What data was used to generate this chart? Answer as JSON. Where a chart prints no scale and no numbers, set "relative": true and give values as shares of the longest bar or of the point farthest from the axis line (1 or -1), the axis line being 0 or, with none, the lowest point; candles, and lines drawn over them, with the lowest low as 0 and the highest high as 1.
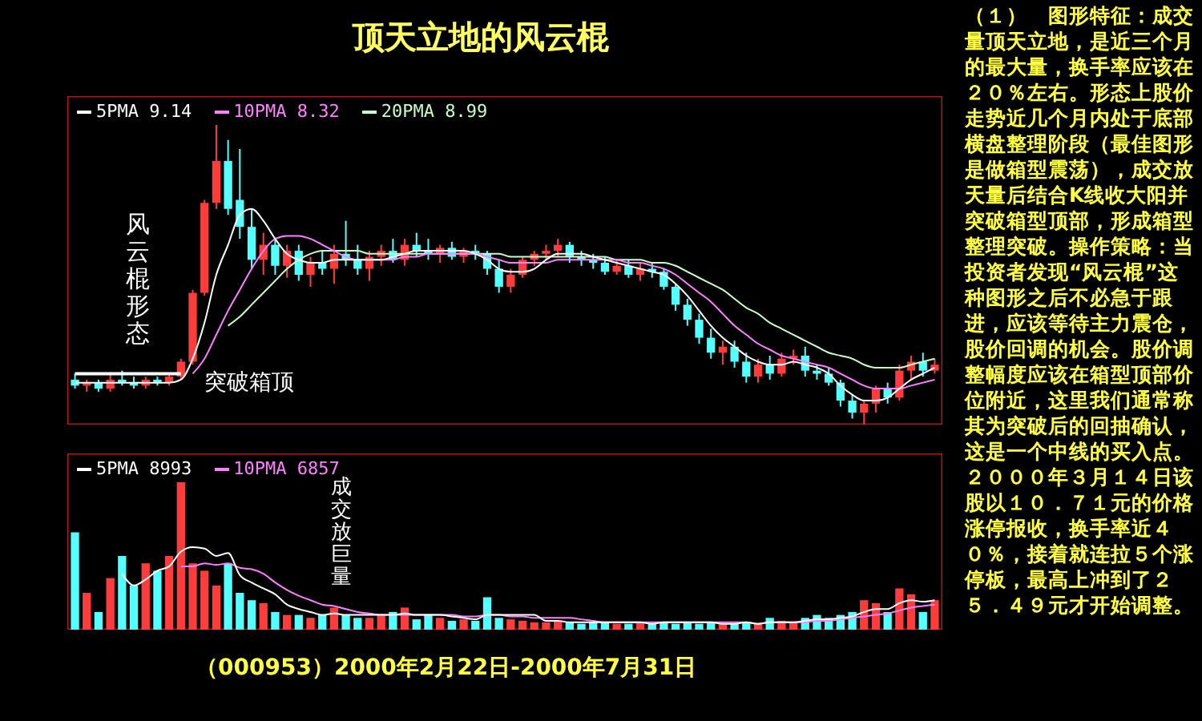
{
  "chart_data": [
    {
      "type": "candlestick",
      "title": "顶天立地的风云棍",
      "relative": true,
      "legend": "top left",
      "categories": [
        null,
        null,
        null,
        null,
        null,
        null,
        null,
        null,
        null,
        null,
        null,
        null,
        null,
        null,
        null,
        null,
        null,
        null,
        null,
        null,
        null,
        null,
        null,
        null,
        null,
        null,
        null,
        null,
        null,
        null,
        null,
        null,
        null,
        null,
        null,
        null,
        null,
        null,
        null,
        null,
        null,
        null,
        null,
        null,
        null,
        null,
        null,
        null,
        null,
        null,
        null,
        null,
        null,
        null,
        null,
        null,
        null,
        null,
        null,
        null,
        null,
        null,
        null,
        null,
        null,
        null,
        null,
        null,
        null,
        null,
        null,
        null,
        null,
        null
      ],
      "ohlc": [
        [
          0.15,
          0.17,
          0.12,
          0.13
        ],
        [
          0.13,
          0.15,
          0.11,
          0.14
        ],
        [
          0.14,
          0.15,
          0.11,
          0.12
        ],
        [
          0.12,
          0.17,
          0.11,
          0.15
        ],
        [
          0.15,
          0.18,
          0.13,
          0.14
        ],
        [
          0.14,
          0.16,
          0.12,
          0.13
        ],
        [
          0.13,
          0.16,
          0.12,
          0.15
        ],
        [
          0.15,
          0.16,
          0.13,
          0.14
        ],
        [
          0.14,
          0.17,
          0.13,
          0.16
        ],
        [
          0.16,
          0.22,
          0.15,
          0.21
        ],
        [
          0.21,
          0.45,
          0.2,
          0.44
        ],
        [
          0.44,
          0.75,
          0.43,
          0.74
        ],
        [
          0.74,
          1.0,
          0.72,
          0.88
        ],
        [
          0.88,
          0.95,
          0.7,
          0.72
        ],
        [
          0.75,
          0.92,
          0.62,
          0.66
        ],
        [
          0.66,
          0.72,
          0.52,
          0.55
        ],
        [
          0.55,
          0.64,
          0.5,
          0.6
        ],
        [
          0.6,
          0.62,
          0.5,
          0.53
        ],
        [
          0.53,
          0.6,
          0.49,
          0.58
        ],
        [
          0.58,
          0.6,
          0.48,
          0.5
        ],
        [
          0.5,
          0.56,
          0.46,
          0.54
        ],
        [
          0.54,
          0.58,
          0.5,
          0.52
        ],
        [
          0.52,
          0.6,
          0.47,
          0.57
        ],
        [
          0.57,
          0.68,
          0.53,
          0.55
        ],
        [
          0.55,
          0.6,
          0.5,
          0.52
        ],
        [
          0.52,
          0.58,
          0.48,
          0.56
        ],
        [
          0.56,
          0.6,
          0.53,
          0.58
        ],
        [
          0.58,
          0.62,
          0.54,
          0.55
        ],
        [
          0.55,
          0.62,
          0.53,
          0.6
        ],
        [
          0.6,
          0.64,
          0.56,
          0.58
        ],
        [
          0.58,
          0.62,
          0.55,
          0.57
        ],
        [
          0.57,
          0.6,
          0.54,
          0.59
        ],
        [
          0.59,
          0.61,
          0.55,
          0.56
        ],
        [
          0.56,
          0.59,
          0.54,
          0.58
        ],
        [
          0.58,
          0.6,
          0.55,
          0.57
        ],
        [
          0.57,
          0.58,
          0.5,
          0.52
        ],
        [
          0.52,
          0.55,
          0.44,
          0.46
        ],
        [
          0.46,
          0.52,
          0.44,
          0.5
        ],
        [
          0.5,
          0.56,
          0.49,
          0.55
        ],
        [
          0.55,
          0.58,
          0.53,
          0.57
        ],
        [
          0.57,
          0.6,
          0.55,
          0.58
        ],
        [
          0.58,
          0.62,
          0.56,
          0.6
        ],
        [
          0.6,
          0.61,
          0.54,
          0.56
        ],
        [
          0.56,
          0.58,
          0.53,
          0.55
        ],
        [
          0.55,
          0.57,
          0.52,
          0.54
        ],
        [
          0.54,
          0.56,
          0.5,
          0.51
        ],
        [
          0.51,
          0.55,
          0.5,
          0.53
        ],
        [
          0.53,
          0.55,
          0.49,
          0.5
        ],
        [
          0.5,
          0.54,
          0.48,
          0.52
        ],
        [
          0.52,
          0.54,
          0.49,
          0.51
        ],
        [
          0.51,
          0.52,
          0.45,
          0.46
        ],
        [
          0.46,
          0.47,
          0.38,
          0.4
        ],
        [
          0.4,
          0.42,
          0.33,
          0.35
        ],
        [
          0.35,
          0.37,
          0.27,
          0.29
        ],
        [
          0.29,
          0.32,
          0.22,
          0.24
        ],
        [
          0.24,
          0.28,
          0.2,
          0.26
        ],
        [
          0.26,
          0.28,
          0.19,
          0.21
        ],
        [
          0.21,
          0.24,
          0.14,
          0.16
        ],
        [
          0.16,
          0.22,
          0.14,
          0.2
        ],
        [
          0.2,
          0.23,
          0.15,
          0.17
        ],
        [
          0.17,
          0.24,
          0.16,
          0.22
        ],
        [
          0.22,
          0.25,
          0.2,
          0.23
        ],
        [
          0.23,
          0.26,
          0.16,
          0.18
        ],
        [
          0.18,
          0.2,
          0.15,
          0.17
        ],
        [
          0.17,
          0.19,
          0.13,
          0.14
        ],
        [
          0.14,
          0.15,
          0.06,
          0.08
        ],
        [
          0.08,
          0.1,
          0.02,
          0.04
        ],
        [
          0.04,
          0.08,
          0.0,
          0.07
        ],
        [
          0.07,
          0.13,
          0.04,
          0.12
        ],
        [
          0.12,
          0.14,
          0.07,
          0.09
        ],
        [
          0.09,
          0.2,
          0.08,
          0.18
        ],
        [
          0.18,
          0.23,
          0.15,
          0.21
        ],
        [
          0.21,
          0.24,
          0.16,
          0.18
        ],
        [
          0.18,
          0.22,
          0.17,
          0.2
        ]
      ],
      "colors": [
        "#54ffff",
        "#ff3c3c",
        "#54ffff",
        "#ff3c3c",
        "#54ffff",
        "#54ffff",
        "#ff3c3c",
        "#54ffff",
        "#ff3c3c",
        "#ff3c3c",
        "#ff3c3c",
        "#ff3c3c",
        "#ff3c3c",
        "#54ffff",
        "#54ffff",
        "#54ffff",
        "#ff3c3c",
        "#54ffff",
        "#ff3c3c",
        "#54ffff",
        "#ff3c3c",
        "#54ffff",
        "#ff3c3c",
        "#54ffff",
        "#54ffff",
        "#ff3c3c",
        "#ff3c3c",
        "#54ffff",
        "#ff3c3c",
        "#54ffff",
        "#54ffff",
        "#ff3c3c",
        "#54ffff",
        "#ff3c3c",
        "#54ffff",
        "#54ffff",
        "#54ffff",
        "#ff3c3c",
        "#ff3c3c",
        "#ff3c3c",
        "#ff3c3c",
        "#ff3c3c",
        "#54ffff",
        "#54ffff",
        "#54ffff",
        "#54ffff",
        "#ff3c3c",
        "#54ffff",
        "#ff3c3c",
        "#54ffff",
        "#54ffff",
        "#54ffff",
        "#54ffff",
        "#54ffff",
        "#54ffff",
        "#ff3c3c",
        "#54ffff",
        "#54ffff",
        "#ff3c3c",
        "#54ffff",
        "#ff3c3c",
        "#ff3c3c",
        "#54ffff",
        "#54ffff",
        "#54ffff",
        "#54ffff",
        "#54ffff",
        "#ff3c3c",
        "#ff3c3c",
        "#54ffff",
        "#ff3c3c",
        "#ff3c3c",
        "#54ffff",
        "#ff3c3c"
      ],
      "series": [
        {
          "name": "5PMA 9.14",
          "type": "line",
          "color": "#ffffff",
          "values": [
            0.14,
            0.14,
            0.14,
            0.14,
            0.14,
            0.14,
            0.14,
            0.14,
            0.14,
            0.15,
            0.22,
            0.34,
            0.5,
            0.6,
            0.7,
            0.72,
            0.68,
            0.62,
            0.57,
            0.55,
            0.54,
            0.54,
            0.55,
            0.55,
            0.55,
            0.55,
            0.55,
            0.56,
            0.57,
            0.58,
            0.58,
            0.58,
            0.58,
            0.58,
            0.57,
            0.55,
            0.52,
            0.51,
            0.51,
            0.52,
            0.55,
            0.57,
            0.57,
            0.57,
            0.56,
            0.55,
            0.54,
            0.53,
            0.52,
            0.51,
            0.5,
            0.47,
            0.43,
            0.38,
            0.33,
            0.29,
            0.26,
            0.23,
            0.21,
            0.2,
            0.2,
            0.21,
            0.2,
            0.19,
            0.17,
            0.13,
            0.1,
            0.08,
            0.08,
            0.09,
            0.12,
            0.15,
            0.17,
            0.19
          ]
        },
        {
          "name": "10PMA 8.32",
          "type": "line",
          "color": "#ff80ff",
          "values": [
            null,
            null,
            null,
            null,
            null,
            null,
            null,
            null,
            null,
            null,
            0.17,
            0.22,
            0.3,
            0.38,
            0.45,
            0.52,
            0.58,
            0.62,
            0.63,
            0.63,
            0.62,
            0.6,
            0.58,
            0.56,
            0.55,
            0.55,
            0.55,
            0.55,
            0.56,
            0.56,
            0.57,
            0.57,
            0.57,
            0.57,
            0.57,
            0.56,
            0.55,
            0.54,
            0.54,
            0.54,
            0.54,
            0.55,
            0.55,
            0.55,
            0.55,
            0.55,
            0.55,
            0.54,
            0.54,
            0.53,
            0.52,
            0.5,
            0.47,
            0.44,
            0.41,
            0.37,
            0.33,
            0.3,
            0.27,
            0.25,
            0.23,
            0.22,
            0.21,
            0.2,
            0.19,
            0.17,
            0.15,
            0.13,
            0.12,
            0.12,
            0.12,
            0.13,
            0.14,
            0.15
          ]
        },
        {
          "name": "20PMA 8.99",
          "type": "line",
          "color": "#c8ffc8",
          "values": [
            null,
            null,
            null,
            null,
            null,
            null,
            null,
            null,
            null,
            null,
            null,
            null,
            null,
            0.33,
            0.36,
            0.4,
            0.44,
            0.48,
            0.52,
            0.55,
            0.57,
            0.58,
            0.58,
            0.58,
            0.58,
            0.57,
            0.57,
            0.57,
            0.57,
            0.57,
            0.57,
            0.57,
            0.57,
            0.57,
            0.57,
            0.57,
            0.57,
            0.56,
            0.56,
            0.56,
            0.56,
            0.56,
            0.56,
            0.56,
            0.56,
            0.56,
            0.55,
            0.55,
            0.55,
            0.54,
            0.54,
            0.53,
            0.51,
            0.49,
            0.47,
            0.45,
            0.42,
            0.39,
            0.37,
            0.34,
            0.32,
            0.3,
            0.28,
            0.26,
            0.24,
            0.23,
            0.22,
            0.2,
            0.19,
            0.19,
            0.19,
            0.2,
            0.21,
            0.22
          ]
        }
      ],
      "ref_lines": [
        {
          "axis": "y",
          "value": 0.17,
          "label": "突破箱顶",
          "color": "#ffffff"
        }
      ],
      "annotations": [
        "风云棍形态"
      ]
    },
    {
      "type": "bar",
      "relative": true,
      "legend": "top left",
      "categories": [
        null,
        null,
        null,
        null,
        null,
        null,
        null,
        null,
        null,
        null,
        null,
        null,
        null,
        null,
        null,
        null,
        null,
        null,
        null,
        null,
        null,
        null,
        null,
        null,
        null,
        null,
        null,
        null,
        null,
        null,
        null,
        null,
        null,
        null,
        null,
        null,
        null,
        null,
        null,
        null,
        null,
        null,
        null,
        null,
        null,
        null,
        null,
        null,
        null,
        null,
        null,
        null,
        null,
        null,
        null,
        null,
        null,
        null,
        null,
        null,
        null,
        null,
        null,
        null,
        null,
        null,
        null,
        null,
        null,
        null,
        null,
        null,
        null,
        null
      ],
      "series": [
        {
          "type": "bar",
          "colors": [
            "#54ffff",
            "#ff3c3c",
            "#54ffff",
            "#ff3c3c",
            "#54ffff",
            "#54ffff",
            "#ff3c3c",
            "#54ffff",
            "#ff3c3c",
            "#ff3c3c",
            "#ff3c3c",
            "#ff3c3c",
            "#ff3c3c",
            "#54ffff",
            "#54ffff",
            "#54ffff",
            "#ff3c3c",
            "#54ffff",
            "#ff3c3c",
            "#54ffff",
            "#ff3c3c",
            "#54ffff",
            "#ff3c3c",
            "#54ffff",
            "#54ffff",
            "#ff3c3c",
            "#ff3c3c",
            "#54ffff",
            "#ff3c3c",
            "#54ffff",
            "#54ffff",
            "#ff3c3c",
            "#54ffff",
            "#ff3c3c",
            "#54ffff",
            "#54ffff",
            "#54ffff",
            "#ff3c3c",
            "#ff3c3c",
            "#ff3c3c",
            "#ff3c3c",
            "#ff3c3c",
            "#54ffff",
            "#54ffff",
            "#54ffff",
            "#54ffff",
            "#ff3c3c",
            "#54ffff",
            "#ff3c3c",
            "#54ffff",
            "#54ffff",
            "#54ffff",
            "#54ffff",
            "#54ffff",
            "#54ffff",
            "#ff3c3c",
            "#54ffff",
            "#54ffff",
            "#ff3c3c",
            "#54ffff",
            "#ff3c3c",
            "#ff3c3c",
            "#54ffff",
            "#54ffff",
            "#54ffff",
            "#54ffff",
            "#54ffff",
            "#ff3c3c",
            "#ff3c3c",
            "#54ffff",
            "#ff3c3c",
            "#ff3c3c",
            "#54ffff",
            "#ff3c3c"
          ],
          "values": [
            0.66,
            0.25,
            0.12,
            0.35,
            0.5,
            0.3,
            0.45,
            0.4,
            0.5,
            1.0,
            0.45,
            0.4,
            0.3,
            0.45,
            0.25,
            0.2,
            0.18,
            0.12,
            0.1,
            0.1,
            0.08,
            0.1,
            0.15,
            0.1,
            0.08,
            0.08,
            0.1,
            0.12,
            0.15,
            0.07,
            0.1,
            0.08,
            0.06,
            0.07,
            0.06,
            0.22,
            0.08,
            0.07,
            0.06,
            0.05,
            0.05,
            0.06,
            0.05,
            0.04,
            0.05,
            0.05,
            0.04,
            0.04,
            0.05,
            0.04,
            0.05,
            0.04,
            0.05,
            0.04,
            0.05,
            0.04,
            0.04,
            0.05,
            0.04,
            0.08,
            0.06,
            0.05,
            0.08,
            0.1,
            0.08,
            0.1,
            0.12,
            0.2,
            0.18,
            0.12,
            0.28,
            0.24,
            0.12,
            0.2
          ]
        },
        {
          "name": "5PMA 8993",
          "type": "line",
          "color": "#ffffff",
          "values": [
            null,
            null,
            null,
            null,
            0.38,
            0.3,
            0.34,
            0.4,
            0.43,
            0.53,
            0.56,
            0.55,
            0.5,
            0.52,
            0.37,
            0.32,
            0.28,
            0.24,
            0.17,
            0.14,
            0.12,
            0.1,
            0.11,
            0.1,
            0.1,
            0.1,
            0.1,
            0.1,
            0.11,
            0.1,
            0.1,
            0.1,
            0.09,
            0.08,
            0.07,
            0.1,
            0.1,
            0.1,
            0.1,
            0.1,
            0.06,
            0.06,
            0.05,
            0.05,
            0.05,
            0.05,
            0.05,
            0.05,
            0.05,
            0.04,
            0.05,
            0.05,
            0.05,
            0.05,
            0.05,
            0.04,
            0.04,
            0.05,
            0.04,
            0.05,
            0.05,
            0.05,
            0.06,
            0.07,
            0.07,
            0.08,
            0.09,
            0.12,
            0.14,
            0.14,
            0.18,
            0.2,
            0.19,
            0.2
          ]
        },
        {
          "name": "10PMA 6857",
          "type": "line",
          "color": "#ff80ff",
          "values": [
            null,
            null,
            null,
            null,
            null,
            null,
            null,
            null,
            null,
            0.43,
            0.43,
            0.45,
            0.44,
            0.45,
            0.42,
            0.41,
            0.38,
            0.32,
            0.27,
            0.23,
            0.2,
            0.17,
            0.16,
            0.14,
            0.12,
            0.11,
            0.1,
            0.1,
            0.1,
            0.1,
            0.1,
            0.1,
            0.1,
            0.09,
            0.09,
            0.1,
            0.1,
            0.09,
            0.09,
            0.08,
            0.08,
            0.08,
            0.08,
            0.07,
            0.06,
            0.05,
            0.05,
            0.05,
            0.05,
            0.05,
            0.05,
            0.05,
            0.05,
            0.05,
            0.05,
            0.05,
            0.05,
            0.05,
            0.04,
            0.05,
            0.05,
            0.05,
            0.05,
            0.06,
            0.06,
            0.07,
            0.08,
            0.09,
            0.1,
            0.11,
            0.13,
            0.15,
            0.16,
            0.17
          ]
        }
      ],
      "annotations": [
        "成交放巨量",
        "（000953）2000年2月22日-2000年7月31日"
      ]
    },
    {
      "type": "other",
      "annotations": [
        "（１）　图形特征：成交量顶天立地，是近三个月的最大量，换手率应该在２０％左右。形态上股价走势近几个月内处于底部横盘整理阶段（最佳图形是做箱型震荡），成交放天量后结合K线收大阳并突破箱型顶部，形成箱型整理突破。操作策略：当投资者发现“风云棍”这种图形之后不必急于跟进，应该等待主力震仓，股价回调的机会。股价调整幅度应该在箱型顶部价位附近，这里我们通常称其为突破后的回抽确认，这是一个中线的买入点。",
        "２０００年３月１４日该股以１０．７１元的价格涨停报收，换手率近４０％，接着就连拉５个涨停板，最高上冲到了２５．４９元才开始调整。"
      ]
    }
  ]
}
